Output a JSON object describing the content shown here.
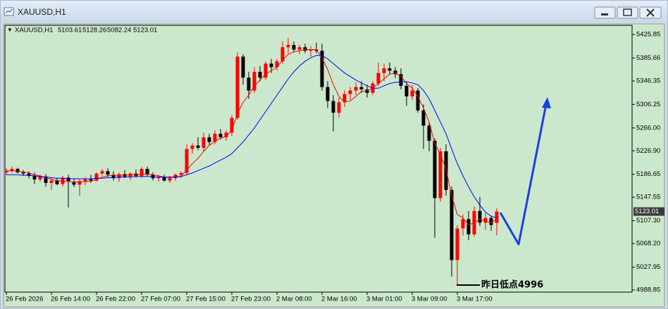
{
  "chart_data": {
    "type": "candlestick",
    "title": "XAUUSD,H1",
    "categories": [
      "26 Feb 2026",
      null,
      null,
      null,
      null,
      null,
      null,
      null,
      "26 Feb 14:00",
      null,
      null,
      null,
      null,
      null,
      null,
      null,
      "26 Feb 22:00",
      null,
      null,
      null,
      null,
      null,
      null,
      null,
      "27 Feb 07:00",
      null,
      null,
      null,
      null,
      null,
      null,
      null,
      "27 Feb 15:00",
      null,
      null,
      null,
      null,
      null,
      null,
      null,
      "27 Feb 23:00",
      null,
      null,
      null,
      null,
      null,
      null,
      null,
      "2 Mar 08:00",
      null,
      null,
      null,
      null,
      null,
      null,
      null,
      "2 Mar 16:00",
      null,
      null,
      null,
      null,
      null,
      null,
      null,
      "3 Mar 01:00",
      null,
      null,
      null,
      null,
      null,
      null,
      null,
      "3 Mar 09:00",
      null,
      null,
      null,
      null,
      null,
      null,
      null,
      "3 Mar 17:00",
      null,
      null,
      null,
      null,
      null,
      null,
      null
    ],
    "open": [
      5190,
      5193,
      5196,
      5190,
      5188,
      5184,
      5178,
      5183,
      5172,
      5176,
      5170,
      5181,
      5174,
      5169,
      5175,
      5178,
      5176,
      5188,
      5192,
      5186,
      5180,
      5187,
      5183,
      5188,
      5184,
      5196,
      5186,
      5180,
      5182,
      5176,
      5180,
      5186,
      5189,
      5230,
      5236,
      5232,
      5250,
      5242,
      5256,
      5250,
      5258,
      5283,
      5388,
      5352,
      5330,
      5362,
      5352,
      5376,
      5370,
      5380,
      5404,
      5408,
      5400,
      5404,
      5398,
      5400,
      5398,
      5336,
      5312,
      5292,
      5310,
      5324,
      5330,
      5336,
      5332,
      5326,
      5342,
      5360,
      5368,
      5364,
      5358,
      5338,
      5320,
      5330,
      5296,
      5270,
      5244,
      5146,
      5226,
      5160,
      5040,
      5094,
      5110,
      5084,
      5124,
      5104,
      5112,
      5103.61
    ],
    "high": [
      5197,
      5200,
      5198,
      5194,
      5192,
      5190,
      5186,
      5187,
      5180,
      5181,
      5184,
      5186,
      5179,
      5178,
      5182,
      5186,
      5190,
      5196,
      5197,
      5192,
      5190,
      5194,
      5190,
      5195,
      5199,
      5200,
      5190,
      5186,
      5186,
      5184,
      5188,
      5192,
      5238,
      5240,
      5250,
      5258,
      5256,
      5262,
      5264,
      5262,
      5288,
      5395,
      5392,
      5362,
      5370,
      5372,
      5380,
      5384,
      5384,
      5414,
      5420,
      5414,
      5408,
      5410,
      5406,
      5412,
      5410,
      5346,
      5322,
      5318,
      5330,
      5336,
      5344,
      5346,
      5340,
      5346,
      5378,
      5376,
      5378,
      5370,
      5368,
      5344,
      5340,
      5334,
      5306,
      5276,
      5248,
      5232,
      5238,
      5166,
      5100,
      5118,
      5124,
      5132,
      5148,
      5120,
      5116,
      5128.26
    ],
    "low": [
      5186,
      5189,
      5188,
      5184,
      5180,
      5170,
      5174,
      5166,
      5160,
      5168,
      5166,
      5130,
      5165,
      5150,
      5168,
      5172,
      5174,
      5184,
      5182,
      5176,
      5174,
      5180,
      5177,
      5181,
      5180,
      5184,
      5176,
      5174,
      5174,
      5172,
      5176,
      5180,
      5186,
      5222,
      5228,
      5226,
      5236,
      5238,
      5246,
      5244,
      5252,
      5280,
      5340,
      5316,
      5326,
      5346,
      5348,
      5360,
      5364,
      5376,
      5394,
      5396,
      5392,
      5394,
      5388,
      5394,
      5330,
      5300,
      5260,
      5284,
      5302,
      5314,
      5322,
      5326,
      5318,
      5322,
      5338,
      5346,
      5358,
      5352,
      5332,
      5304,
      5314,
      5292,
      5230,
      5226,
      5078,
      5140,
      5150,
      5012,
      4996,
      5082,
      5074,
      5080,
      5098,
      5092,
      5090,
      5082.24
    ],
    "close": [
      5193,
      5196,
      5190,
      5188,
      5184,
      5178,
      5183,
      5172,
      5176,
      5170,
      5181,
      5174,
      5169,
      5175,
      5178,
      5176,
      5188,
      5192,
      5186,
      5180,
      5187,
      5183,
      5188,
      5184,
      5196,
      5186,
      5180,
      5182,
      5176,
      5180,
      5186,
      5189,
      5230,
      5236,
      5232,
      5250,
      5242,
      5256,
      5250,
      5258,
      5283,
      5388,
      5352,
      5330,
      5362,
      5352,
      5376,
      5370,
      5380,
      5404,
      5408,
      5400,
      5404,
      5398,
      5400,
      5398,
      5336,
      5312,
      5292,
      5310,
      5324,
      5330,
      5336,
      5332,
      5326,
      5342,
      5360,
      5368,
      5364,
      5358,
      5338,
      5320,
      5330,
      5296,
      5270,
      5244,
      5146,
      5226,
      5160,
      5040,
      5094,
      5110,
      5084,
      5124,
      5104,
      5112,
      5100,
      5123.01
    ],
    "up_color": "#ff0000",
    "down_color": "#000000",
    "overlays": [
      {
        "color": "#ff0000",
        "values": [
          5192,
          5193,
          5192,
          5191,
          5189,
          5186,
          5184,
          5181,
          5178,
          5176,
          5175,
          5175,
          5173,
          5174,
          5174,
          5175,
          5178,
          5182,
          5184,
          5185,
          5185,
          5185,
          5186,
          5186,
          5187,
          5187,
          5186,
          5184,
          5182,
          5181,
          5182,
          5184,
          5194,
          5205,
          5214,
          5226,
          5236,
          5244,
          5248,
          5252,
          5262,
          5290,
          5310,
          5322,
          5338,
          5348,
          5358,
          5364,
          5370,
          5382,
          5392,
          5396,
          5398,
          5400,
          5400,
          5400,
          5386,
          5366,
          5340,
          5320,
          5310,
          5312,
          5320,
          5328,
          5330,
          5334,
          5342,
          5350,
          5358,
          5360,
          5354,
          5342,
          5334,
          5320,
          5300,
          5276,
          5240,
          5220,
          5196,
          5150,
          5118,
          5112,
          5100,
          5104,
          5110,
          5106,
          5104,
          5110
        ]
      },
      {
        "color": "#0000ff",
        "values": [
          5186,
          5186,
          5186,
          5185,
          5185,
          5184,
          5183,
          5182,
          5181,
          5180,
          5180,
          5179,
          5179,
          5179,
          5179,
          5179,
          5180,
          5180,
          5181,
          5181,
          5182,
          5182,
          5182,
          5183,
          5183,
          5183,
          5183,
          5182,
          5182,
          5182,
          5182,
          5183,
          5186,
          5189,
          5193,
          5197,
          5201,
          5206,
          5211,
          5216,
          5222,
          5232,
          5242,
          5254,
          5266,
          5280,
          5294,
          5308,
          5322,
          5336,
          5350,
          5362,
          5372,
          5380,
          5386,
          5390,
          5390,
          5384,
          5376,
          5368,
          5360,
          5354,
          5348,
          5343,
          5338,
          5334,
          5334,
          5338,
          5342,
          5344,
          5345,
          5345,
          5343,
          5340,
          5330,
          5316,
          5296,
          5276,
          5256,
          5230,
          5205,
          5184,
          5165,
          5148,
          5134,
          5122,
          5115,
          5112
        ]
      }
    ],
    "ylim": [
      4985.2,
      5441.5
    ],
    "yticks": [
      5425.85,
      5385.66,
      5346.35,
      5306.25,
      {
        "value": 5266,
        "label": "5266.00"
      },
      {
        "value": 5226.9,
        "label": "5226.90"
      },
      5186.65,
      5147.55,
      {
        "value": 5107.3,
        "label": "5107.30"
      },
      {
        "value": 5068.2,
        "label": "5068.20"
      },
      5027.95,
      4988.85
    ],
    "annotation": "昨日低点4996"
  }
}
